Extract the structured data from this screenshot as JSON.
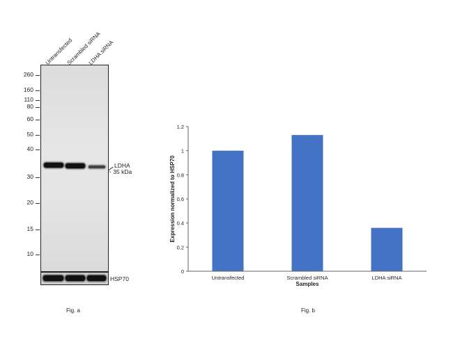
{
  "blot": {
    "lanes": [
      "Untransfected",
      "Scrambled siRNA",
      "LDHA siRNA"
    ],
    "mw_markers": [
      "260",
      "160",
      "110",
      "80",
      "60",
      "50",
      "40",
      "30",
      "20",
      "15",
      "10"
    ],
    "band_label": "LDHA",
    "band_size": "~ 35 kDa",
    "loading_control": "HSP70",
    "caption": "Fig. a"
  },
  "chart_data": {
    "type": "bar",
    "categories": [
      "Untransfected",
      "Scrambled siRNA",
      "LDHA siRNA"
    ],
    "values": [
      1.0,
      1.13,
      0.36
    ],
    "xlabel": "Samples",
    "ylabel": "Expression normalized to HSP70",
    "ylim": [
      0,
      1.2
    ],
    "yticks": [
      0,
      0.2,
      0.4,
      0.6,
      0.8,
      1,
      1.2
    ],
    "bar_color": "#4472C4",
    "grid": false,
    "legend": "none",
    "caption": "Fig. b"
  }
}
